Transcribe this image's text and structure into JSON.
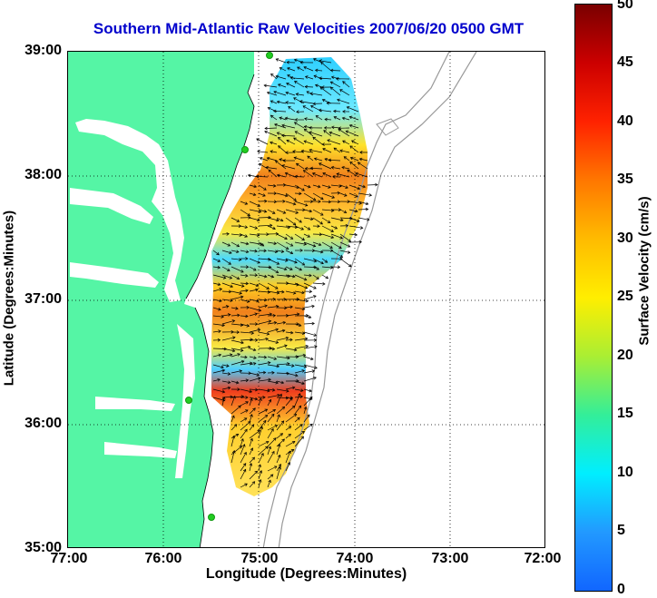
{
  "title": "Southern Mid-Atlantic Raw Velocities 2007/06/20 0500 GMT",
  "axes": {
    "xlabel": "Longitude (Degrees:Minutes)",
    "ylabel": "Latitude (Degrees:Minutes)",
    "xticks": [
      "77:00",
      "76:00",
      "75:00",
      "74:00",
      "73:00",
      "72:00"
    ],
    "yticks": [
      "39:00",
      "38:00",
      "37:00",
      "36:00",
      "35:00"
    ]
  },
  "colorbar": {
    "label": "Surface Velocity (cm/s)",
    "ticks": [
      "50",
      "45",
      "40",
      "35",
      "30",
      "25",
      "20",
      "15",
      "10",
      "5",
      "0"
    ],
    "range": [
      0,
      50
    ]
  },
  "colors": {
    "land": "#55f5a5",
    "title": "#0000cc",
    "station": "#22cc22"
  }
}
